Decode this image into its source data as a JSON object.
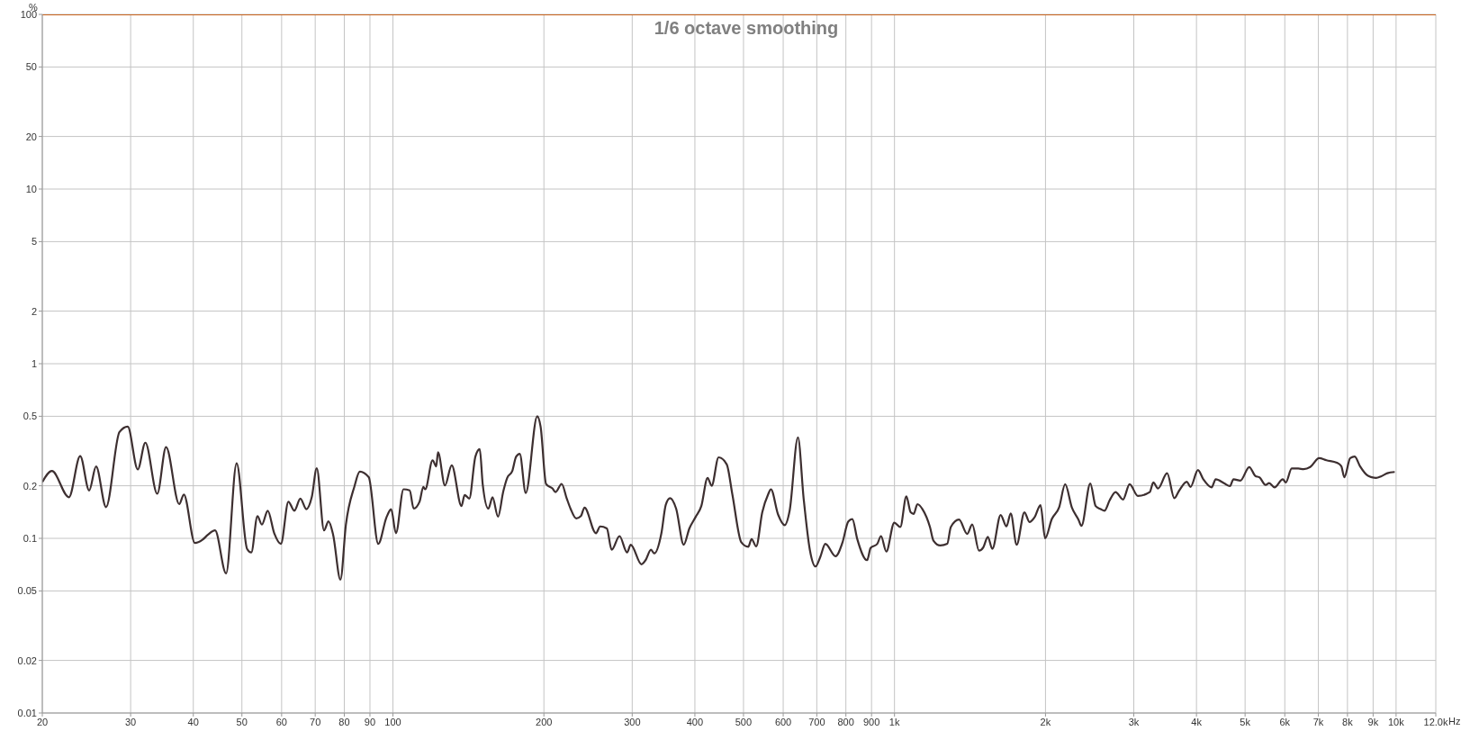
{
  "chart_data": {
    "type": "line",
    "title": "1/6 octave smoothing",
    "ylabel": "%",
    "xlabel": "Hz",
    "log": "xy",
    "grid": true,
    "marker": "none",
    "line_style": "solid",
    "xlim": [
      20,
      12000
    ],
    "ylim": [
      0.01,
      100
    ],
    "xticks": [
      20,
      30,
      40,
      50,
      60,
      70,
      80,
      90,
      100,
      200,
      300,
      400,
      500,
      600,
      700,
      800,
      900,
      {
        "value": 1000,
        "label": "1k"
      },
      {
        "value": 2000,
        "label": "2k"
      },
      {
        "value": 3000,
        "label": "3k"
      },
      {
        "value": 4000,
        "label": "4k"
      },
      {
        "value": 5000,
        "label": "5k"
      },
      {
        "value": 6000,
        "label": "6k"
      },
      {
        "value": 7000,
        "label": "7k"
      },
      {
        "value": 8000,
        "label": "8k"
      },
      {
        "value": 9000,
        "label": "9k"
      },
      {
        "value": 10000,
        "label": "10k"
      },
      {
        "value": 12000,
        "label": "12.0k"
      }
    ],
    "yticks": [
      0.01,
      0.02,
      0.05,
      0.1,
      0.2,
      0.5,
      1,
      2,
      5,
      10,
      20,
      50,
      100
    ],
    "series": [
      {
        "color": "#c8641e",
        "x": [
          20,
          12000
        ],
        "values": [
          100,
          100
        ]
      },
      {
        "color": "#3d2f30",
        "x": [
          20,
          20.9,
          22.6,
          23.8,
          24.8,
          25.6,
          26.8,
          28.5,
          29.6,
          31.0,
          32.1,
          33.9,
          35.3,
          37.5,
          38.3,
          40.3,
          41.7,
          42.8,
          44.2,
          46.5,
          48.8,
          51.2,
          52.2,
          53.7,
          54.8,
          56.3,
          58.0,
          59.8,
          61.9,
          63.6,
          65.4,
          67.2,
          68.9,
          70.5,
          72.9,
          74.4,
          76.0,
          78.6,
          80.6,
          83.8,
          85.9,
          89.5,
          93.5,
          97.1,
          99.2,
          101.4,
          105,
          108,
          110,
          113,
          115,
          116,
          120,
          122,
          123,
          127,
          131,
          137,
          139,
          142,
          146,
          149,
          151,
          155,
          158,
          162,
          166,
          169,
          173,
          176,
          179,
          184,
          194,
          197,
          202,
          208,
          211,
          217,
          222,
          226,
          232,
          237,
          241,
          254,
          259,
          267,
          273,
          283,
          293,
          298,
          313,
          319,
          327,
          332,
          343,
          350,
          357,
          367,
          380,
          390,
          401,
          412,
          424,
          432,
          446,
          463,
          475,
          495,
          511,
          519,
          530,
          545,
          560,
          567,
          586,
          604,
          618,
          642,
          659,
          678,
          696,
          711,
          728,
          763,
          787,
          809,
          824,
          843,
          882,
          896,
          924,
          940,
          963,
          999,
          1027,
          1056,
          1077,
          1092,
          1111,
          1137,
          1177,
          1196,
          1234,
          1274,
          1295,
          1345,
          1396,
          1429,
          1474,
          1504,
          1535,
          1567,
          1628,
          1672,
          1705,
          1752,
          1816,
          1858,
          1902,
          1955,
          1997,
          2059,
          2130,
          2189,
          2258,
          2327,
          2359,
          2457,
          2518,
          2577,
          2623,
          2685,
          2759,
          2855,
          2943,
          3056,
          3228,
          3281,
          3353,
          3496,
          3613,
          3692,
          3827,
          3892,
          4027,
          4127,
          4287,
          4370,
          4539,
          4664,
          4741,
          4892,
          5097,
          5238,
          5346,
          5494,
          5585,
          5724,
          5945,
          6027,
          6193,
          6383,
          6541,
          6742,
          7022,
          7265,
          7620,
          7777,
          7885,
          8102,
          8269,
          8474,
          8792,
          9123,
          9348,
          9607,
          9938
        ],
        "values": [
          0.21,
          0.243,
          0.172,
          0.296,
          0.188,
          0.258,
          0.151,
          0.406,
          0.436,
          0.248,
          0.353,
          0.18,
          0.333,
          0.157,
          0.178,
          0.094,
          0.098,
          0.105,
          0.111,
          0.063,
          0.269,
          0.087,
          0.083,
          0.134,
          0.12,
          0.144,
          0.107,
          0.093,
          0.162,
          0.144,
          0.169,
          0.147,
          0.172,
          0.252,
          0.111,
          0.125,
          0.105,
          0.058,
          0.12,
          0.198,
          0.241,
          0.224,
          0.093,
          0.132,
          0.147,
          0.107,
          0.191,
          0.188,
          0.148,
          0.162,
          0.197,
          0.191,
          0.28,
          0.258,
          0.311,
          0.201,
          0.262,
          0.153,
          0.177,
          0.169,
          0.293,
          0.324,
          0.205,
          0.148,
          0.172,
          0.133,
          0.186,
          0.222,
          0.243,
          0.293,
          0.305,
          0.182,
          0.5,
          0.436,
          0.205,
          0.193,
          0.184,
          0.205,
          0.17,
          0.148,
          0.13,
          0.134,
          0.15,
          0.107,
          0.117,
          0.114,
          0.086,
          0.103,
          0.083,
          0.092,
          0.071,
          0.075,
          0.086,
          0.082,
          0.107,
          0.156,
          0.17,
          0.148,
          0.092,
          0.114,
          0.132,
          0.153,
          0.222,
          0.2,
          0.291,
          0.265,
          0.179,
          0.095,
          0.0895,
          0.099,
          0.09,
          0.141,
          0.179,
          0.191,
          0.137,
          0.119,
          0.144,
          0.379,
          0.169,
          0.086,
          0.069,
          0.078,
          0.093,
          0.079,
          0.094,
          0.125,
          0.129,
          0.099,
          0.075,
          0.088,
          0.093,
          0.103,
          0.084,
          0.123,
          0.116,
          0.174,
          0.141,
          0.138,
          0.157,
          0.147,
          0.116,
          0.097,
          0.091,
          0.093,
          0.116,
          0.128,
          0.106,
          0.12,
          0.085,
          0.089,
          0.102,
          0.087,
          0.136,
          0.117,
          0.139,
          0.092,
          0.141,
          0.124,
          0.132,
          0.155,
          0.1,
          0.129,
          0.151,
          0.204,
          0.15,
          0.128,
          0.118,
          0.206,
          0.153,
          0.147,
          0.144,
          0.165,
          0.184,
          0.167,
          0.204,
          0.175,
          0.184,
          0.209,
          0.193,
          0.236,
          0.17,
          0.187,
          0.211,
          0.197,
          0.246,
          0.218,
          0.196,
          0.218,
          0.207,
          0.199,
          0.218,
          0.214,
          0.256,
          0.228,
          0.223,
          0.202,
          0.207,
          0.196,
          0.218,
          0.209,
          0.251,
          0.251,
          0.249,
          0.256,
          0.288,
          0.28,
          0.271,
          0.259,
          0.224,
          0.288,
          0.294,
          0.259,
          0.228,
          0.222,
          0.227,
          0.236,
          0.24
        ]
      }
    ]
  }
}
